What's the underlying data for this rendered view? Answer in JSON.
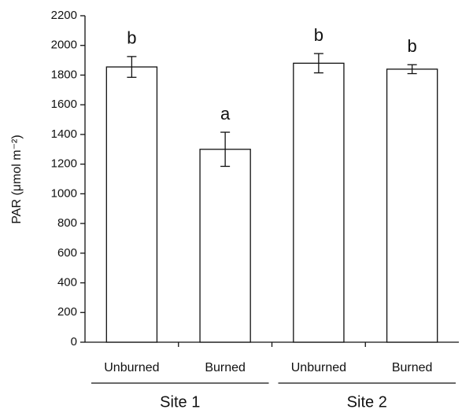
{
  "chart_data": {
    "type": "bar",
    "y_label": "PAR (μmol m⁻²)",
    "categories": [
      "Unburned",
      "Burned",
      "Unburned",
      "Burned"
    ],
    "groups": [
      "Site 1",
      "Site 2"
    ],
    "values": [
      1855,
      1300,
      1880,
      1840
    ],
    "errors": [
      70,
      115,
      65,
      30
    ],
    "letters": [
      "b",
      "a",
      "b",
      "b"
    ],
    "color": "#ffffff",
    "ylim": [
      0,
      2200
    ],
    "yticks": [
      0,
      200,
      400,
      600,
      800,
      1000,
      1200,
      1400,
      1600,
      1800,
      2000,
      2200
    ],
    "grid": false
  }
}
